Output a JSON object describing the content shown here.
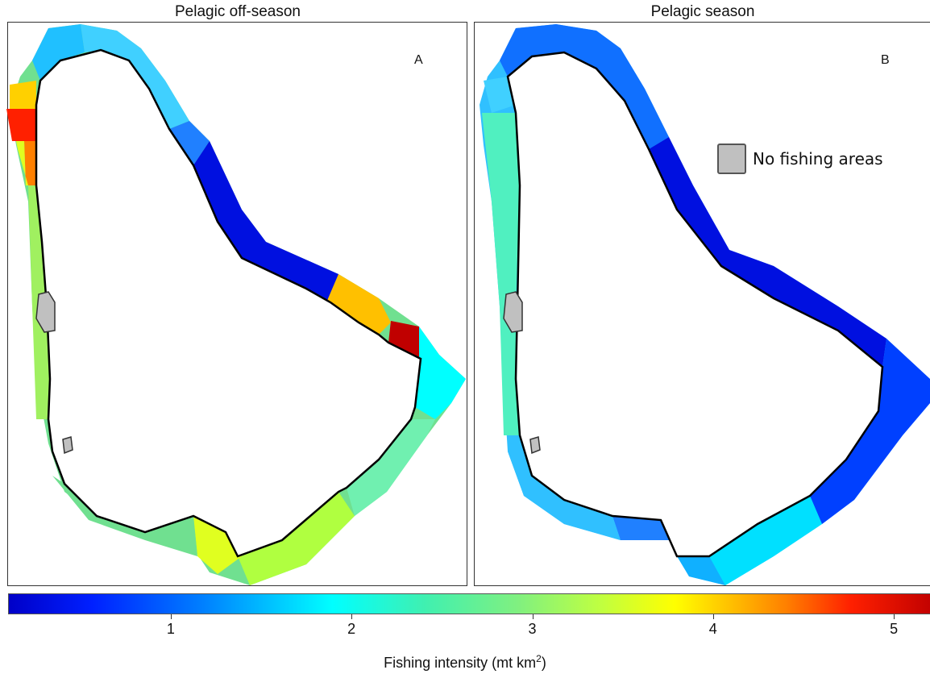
{
  "panels": [
    {
      "title": "Pelagic off-season",
      "letter": "A"
    },
    {
      "title": "Pelagic season",
      "letter": "B"
    }
  ],
  "legend": {
    "no_fishing_label": "No fishing areas",
    "no_fishing_color": "#c0c0c0"
  },
  "colorbar": {
    "title_main": "Fishing intensity (mt km",
    "title_sup": "2",
    "title_end": ")",
    "ticks": [
      {
        "value": 1,
        "label": "1"
      },
      {
        "value": 2,
        "label": "2"
      },
      {
        "value": 3,
        "label": "3"
      },
      {
        "value": 4,
        "label": "4"
      },
      {
        "value": 5,
        "label": "5"
      }
    ],
    "range": [
      0.1,
      5.2
    ]
  },
  "zones_A": [
    {
      "zone": "north-tip",
      "color": "#20c0ff"
    },
    {
      "zone": "north-east",
      "color": "#40d0ff"
    },
    {
      "zone": "north-west-upper",
      "color": "#ffd000"
    },
    {
      "zone": "north-west-red",
      "color": "#ff2000"
    },
    {
      "zone": "north-west-orange",
      "color": "#ff8000"
    },
    {
      "zone": "west",
      "color": "#a0f060"
    },
    {
      "zone": "south-west",
      "color": "#70e090"
    },
    {
      "zone": "south",
      "color": "#b0ff40"
    },
    {
      "zone": "south-tip",
      "color": "#e0ff20"
    },
    {
      "zone": "south-east",
      "color": "#70f0b0"
    },
    {
      "zone": "east-tip",
      "color": "#00ffff"
    },
    {
      "zone": "east-red",
      "color": "#c00000"
    },
    {
      "zone": "east-orange",
      "color": "#ffc000"
    },
    {
      "zone": "north-east-coast",
      "color": "#0010e0"
    },
    {
      "zone": "north-east-upper",
      "color": "#2080ff"
    }
  ],
  "zones_B": [
    {
      "zone": "north",
      "color": "#1070ff"
    },
    {
      "zone": "north-west",
      "color": "#40d0ff"
    },
    {
      "zone": "west",
      "color": "#50f0c0"
    },
    {
      "zone": "south-west",
      "color": "#30c0ff"
    },
    {
      "zone": "south",
      "color": "#2080ff"
    },
    {
      "zone": "south-tip",
      "color": "#10b0ff"
    },
    {
      "zone": "south-east",
      "color": "#00e0ff"
    },
    {
      "zone": "east",
      "color": "#0040ff"
    },
    {
      "zone": "north-east-coast",
      "color": "#0010e0"
    }
  ]
}
